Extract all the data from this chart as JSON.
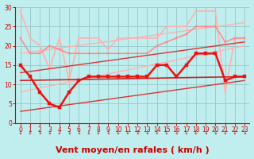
{
  "bg_color": "#c0eeee",
  "grid_color": "#99cccc",
  "xlabel": "Vent moyen/en rafales ( km/h )",
  "xlabel_color": "#cc0000",
  "xlabel_fontsize": 8,
  "tick_color": "#cc0000",
  "xlim": [
    -0.5,
    23.5
  ],
  "ylim": [
    0,
    30
  ],
  "yticks": [
    0,
    5,
    10,
    15,
    20,
    25,
    30
  ],
  "xticks": [
    0,
    1,
    2,
    3,
    4,
    5,
    6,
    7,
    8,
    9,
    10,
    11,
    12,
    13,
    14,
    15,
    16,
    17,
    18,
    19,
    20,
    21,
    22,
    23
  ],
  "series": [
    {
      "comment": "light pink jagged top line with markers",
      "x": [
        0,
        1,
        2,
        3,
        4,
        5,
        6,
        7,
        8,
        9,
        10,
        11,
        12,
        13,
        14,
        15,
        16,
        17,
        18,
        19,
        20,
        21,
        22,
        23
      ],
      "y": [
        29,
        22,
        20,
        14,
        22,
        11,
        22,
        22,
        22,
        19,
        22,
        22,
        22,
        22,
        22,
        25,
        25,
        25,
        29,
        29,
        29,
        8,
        22,
        22
      ],
      "color": "#ffb0b0",
      "lw": 1.2,
      "marker": "s",
      "ms": 2.0,
      "zorder": 2
    },
    {
      "comment": "light pink straight diagonal upper",
      "x": [
        0,
        23
      ],
      "y": [
        18,
        26
      ],
      "color": "#ffb0b0",
      "lw": 1.0,
      "marker": null,
      "ms": 0,
      "zorder": 2
    },
    {
      "comment": "light pink lower band line",
      "x": [
        0,
        23
      ],
      "y": [
        8,
        20
      ],
      "color": "#ffb0b0",
      "lw": 1.0,
      "marker": null,
      "ms": 0,
      "zorder": 2
    },
    {
      "comment": "medium pink jagged line with markers",
      "x": [
        0,
        1,
        2,
        3,
        4,
        5,
        6,
        7,
        8,
        9,
        10,
        11,
        12,
        13,
        14,
        15,
        16,
        17,
        18,
        19,
        20,
        21,
        22,
        23
      ],
      "y": [
        22,
        18,
        18,
        20,
        19,
        18,
        18,
        18,
        18,
        18,
        18,
        18,
        18,
        18,
        20,
        21,
        22,
        23,
        25,
        25,
        25,
        21,
        22,
        22
      ],
      "color": "#ff8888",
      "lw": 1.1,
      "marker": "s",
      "ms": 2.0,
      "zorder": 3
    },
    {
      "comment": "red straight flat line (median/mean)",
      "x": [
        0,
        23
      ],
      "y": [
        11,
        12
      ],
      "color": "#cc2222",
      "lw": 1.2,
      "marker": null,
      "ms": 0,
      "zorder": 4
    },
    {
      "comment": "red lower diagonal trend",
      "x": [
        0,
        23
      ],
      "y": [
        3,
        11
      ],
      "color": "#dd3333",
      "lw": 1.0,
      "marker": null,
      "ms": 0,
      "zorder": 3
    },
    {
      "comment": "red upper diagonal trend",
      "x": [
        0,
        23
      ],
      "y": [
        13,
        21
      ],
      "color": "#dd3333",
      "lw": 1.0,
      "marker": null,
      "ms": 0,
      "zorder": 3
    },
    {
      "comment": "bright red zigzag with markers - main series",
      "x": [
        0,
        1,
        2,
        3,
        4,
        5,
        6,
        7,
        8,
        9,
        10,
        11,
        12,
        13,
        14,
        15,
        16,
        17,
        18,
        19,
        20,
        21,
        22,
        23
      ],
      "y": [
        15,
        12,
        8,
        5,
        4,
        8,
        11,
        12,
        12,
        12,
        12,
        12,
        12,
        12,
        15,
        15,
        12,
        15,
        18,
        18,
        18,
        11,
        12,
        12
      ],
      "color": "#ee1111",
      "lw": 1.8,
      "marker": "s",
      "ms": 2.2,
      "zorder": 5
    }
  ],
  "arrow_color": "#cc0000"
}
